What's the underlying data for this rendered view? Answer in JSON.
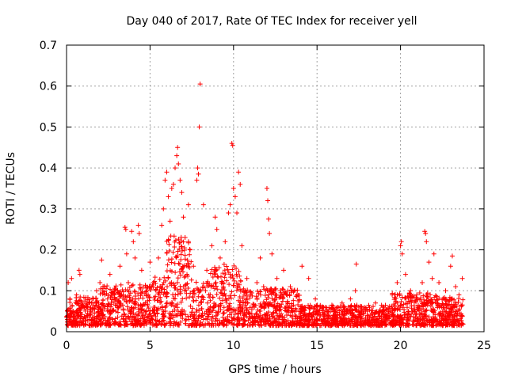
{
  "chart_data": {
    "type": "scatter",
    "title": "Day 040 of 2017, Rate Of TEC Index for receiver yell",
    "xlabel": "GPS time / hours",
    "ylabel": "ROTI / TECUs",
    "xlim": [
      0,
      25
    ],
    "ylim": [
      0,
      0.7
    ],
    "xticks": [
      0,
      5,
      10,
      15,
      20,
      25
    ],
    "xtick_labels": [
      "0",
      "5",
      "10",
      "15",
      "20",
      "25"
    ],
    "yticks": [
      0,
      0.1,
      0.2,
      0.3,
      0.4,
      0.5,
      0.6,
      0.7
    ],
    "ytick_labels": [
      "0",
      "0.1",
      "0.2",
      "0.3",
      "0.4",
      "0.5",
      "0.6",
      "0.7"
    ],
    "grid": true,
    "marker": "+",
    "color": "#ff0000",
    "x_data_range": [
      0,
      23.75
    ],
    "points": [
      [
        0.05,
        0.03
      ],
      [
        0.1,
        0.12
      ],
      [
        0.2,
        0.08
      ],
      [
        0.3,
        0.13
      ],
      [
        0.4,
        0.05
      ],
      [
        0.6,
        0.09
      ],
      [
        0.75,
        0.15
      ],
      [
        0.8,
        0.14
      ],
      [
        1.0,
        0.06
      ],
      [
        1.2,
        0.04
      ],
      [
        1.5,
        0.07
      ],
      [
        1.8,
        0.1
      ],
      [
        2.0,
        0.12
      ],
      [
        2.1,
        0.175
      ],
      [
        2.3,
        0.09
      ],
      [
        2.6,
        0.14
      ],
      [
        2.9,
        0.08
      ],
      [
        3.2,
        0.16
      ],
      [
        3.5,
        0.255
      ],
      [
        3.55,
        0.25
      ],
      [
        3.6,
        0.19
      ],
      [
        3.7,
        0.12
      ],
      [
        3.9,
        0.245
      ],
      [
        4.0,
        0.22
      ],
      [
        4.1,
        0.18
      ],
      [
        4.3,
        0.26
      ],
      [
        4.35,
        0.24
      ],
      [
        4.5,
        0.15
      ],
      [
        4.8,
        0.1
      ],
      [
        5.0,
        0.17
      ],
      [
        5.2,
        0.12
      ],
      [
        5.5,
        0.18
      ],
      [
        5.7,
        0.26
      ],
      [
        5.8,
        0.3
      ],
      [
        5.9,
        0.37
      ],
      [
        6.0,
        0.39
      ],
      [
        6.1,
        0.33
      ],
      [
        6.2,
        0.27
      ],
      [
        6.3,
        0.35
      ],
      [
        6.4,
        0.36
      ],
      [
        6.5,
        0.4
      ],
      [
        6.6,
        0.43
      ],
      [
        6.65,
        0.45
      ],
      [
        6.7,
        0.41
      ],
      [
        6.8,
        0.37
      ],
      [
        6.9,
        0.34
      ],
      [
        7.0,
        0.28
      ],
      [
        7.1,
        0.23
      ],
      [
        7.3,
        0.31
      ],
      [
        7.4,
        0.2
      ],
      [
        7.6,
        0.16
      ],
      [
        7.8,
        0.37
      ],
      [
        7.85,
        0.4
      ],
      [
        7.9,
        0.385
      ],
      [
        7.95,
        0.5
      ],
      [
        8.0,
        0.605
      ],
      [
        8.2,
        0.31
      ],
      [
        8.4,
        0.15
      ],
      [
        8.7,
        0.21
      ],
      [
        8.9,
        0.28
      ],
      [
        9.0,
        0.25
      ],
      [
        9.2,
        0.18
      ],
      [
        9.5,
        0.22
      ],
      [
        9.7,
        0.29
      ],
      [
        9.8,
        0.31
      ],
      [
        9.9,
        0.46
      ],
      [
        9.95,
        0.455
      ],
      [
        10.0,
        0.35
      ],
      [
        10.1,
        0.33
      ],
      [
        10.2,
        0.29
      ],
      [
        10.3,
        0.39
      ],
      [
        10.4,
        0.36
      ],
      [
        10.5,
        0.21
      ],
      [
        10.8,
        0.13
      ],
      [
        11.0,
        0.09
      ],
      [
        11.4,
        0.12
      ],
      [
        11.6,
        0.18
      ],
      [
        11.8,
        0.11
      ],
      [
        12.0,
        0.35
      ],
      [
        12.05,
        0.32
      ],
      [
        12.1,
        0.275
      ],
      [
        12.15,
        0.24
      ],
      [
        12.3,
        0.19
      ],
      [
        12.6,
        0.13
      ],
      [
        13.0,
        0.15
      ],
      [
        13.4,
        0.11
      ],
      [
        13.8,
        0.09
      ],
      [
        14.1,
        0.16
      ],
      [
        14.5,
        0.13
      ],
      [
        14.9,
        0.08
      ],
      [
        15.2,
        0.06
      ],
      [
        15.6,
        0.05
      ],
      [
        16.0,
        0.04
      ],
      [
        16.5,
        0.07
      ],
      [
        17.0,
        0.08
      ],
      [
        17.3,
        0.1
      ],
      [
        17.35,
        0.165
      ],
      [
        17.5,
        0.06
      ],
      [
        18.0,
        0.05
      ],
      [
        18.5,
        0.07
      ],
      [
        19.0,
        0.06
      ],
      [
        19.5,
        0.09
      ],
      [
        19.8,
        0.12
      ],
      [
        20.0,
        0.21
      ],
      [
        20.05,
        0.22
      ],
      [
        20.1,
        0.19
      ],
      [
        20.3,
        0.14
      ],
      [
        20.6,
        0.1
      ],
      [
        21.0,
        0.08
      ],
      [
        21.3,
        0.12
      ],
      [
        21.45,
        0.245
      ],
      [
        21.5,
        0.24
      ],
      [
        21.55,
        0.22
      ],
      [
        21.7,
        0.17
      ],
      [
        21.9,
        0.13
      ],
      [
        22.0,
        0.19
      ],
      [
        22.3,
        0.12
      ],
      [
        22.7,
        0.1
      ],
      [
        23.0,
        0.16
      ],
      [
        23.1,
        0.185
      ],
      [
        23.3,
        0.11
      ],
      [
        23.5,
        0.09
      ],
      [
        23.7,
        0.13
      ]
    ]
  }
}
